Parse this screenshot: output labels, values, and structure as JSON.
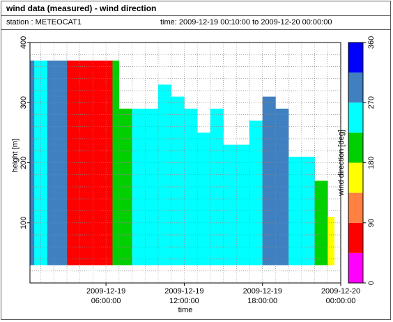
{
  "window": {
    "title": "wind data (measured) - wind direction",
    "station": "station : METEOCAT1",
    "timespan": "time: 2009-12-19 00:10:00 to 2009-12-20 00:00:00"
  },
  "chart_data": {
    "type": "heatmap",
    "title": "wind data (measured) - wind direction",
    "xlabel": "time",
    "ylabel": "height [m]",
    "colorbar_label": "wind direction [deg]",
    "x_range_hours": [
      0,
      24
    ],
    "xlim_hours": [
      0.17,
      24
    ],
    "ylim": [
      0,
      400
    ],
    "grid": true,
    "x_ticks": [
      {
        "hour": 6,
        "line1": "2009-12-19",
        "line2": "06:00:00"
      },
      {
        "hour": 12,
        "line1": "2009-12-19",
        "line2": "12:00:00"
      },
      {
        "hour": 18,
        "line1": "2009-12-19",
        "line2": "18:00:00"
      },
      {
        "hour": 24,
        "line1": "2009-12-20",
        "line2": "00:00:00"
      }
    ],
    "y_ticks": [
      100,
      200,
      300,
      400
    ],
    "color_scale": {
      "min": 0,
      "max": 360,
      "ticks": [
        0,
        90,
        180,
        270,
        360
      ],
      "bins": [
        {
          "from": 0,
          "to": 45,
          "color": "#ff00ff"
        },
        {
          "from": 45,
          "to": 90,
          "color": "#ff0000"
        },
        {
          "from": 90,
          "to": 135,
          "color": "#ff8040"
        },
        {
          "from": 135,
          "to": 180,
          "color": "#ffff00"
        },
        {
          "from": 180,
          "to": 225,
          "color": "#00d000"
        },
        {
          "from": 225,
          "to": 270,
          "color": "#00ffff"
        },
        {
          "from": 270,
          "to": 315,
          "color": "#4080c0"
        },
        {
          "from": 315,
          "to": 360,
          "color": "#0000ff"
        }
      ]
    },
    "heights_m": [
      40,
      60,
      80,
      100,
      120,
      140,
      160,
      180,
      200,
      220,
      240,
      260,
      280,
      300,
      320,
      340,
      360
    ],
    "segments": [
      {
        "t0": 0.17,
        "t1": 0.5,
        "top": 360,
        "dir": 290
      },
      {
        "t0": 0.5,
        "t1": 1.5,
        "top": 360,
        "dir": 250
      },
      {
        "t0": 1.5,
        "t1": 2.0,
        "top": 360,
        "dir": 285
      },
      {
        "t0": 2.0,
        "t1": 3.0,
        "top": 360,
        "dir": 285
      },
      {
        "t0": 3.0,
        "t1": 3.5,
        "top": 360,
        "dir": 75
      },
      {
        "t0": 3.5,
        "t1": 4.5,
        "top": 360,
        "dir": 70
      },
      {
        "t0": 4.5,
        "t1": 5.5,
        "top": 360,
        "dir": 65
      },
      {
        "t0": 5.5,
        "t1": 6.5,
        "top": 360,
        "dir": 75
      },
      {
        "t0": 6.5,
        "t1": 7.0,
        "top": 360,
        "dir": 200
      },
      {
        "t0": 7.0,
        "t1": 8.0,
        "top": 280,
        "dir": 195
      },
      {
        "t0": 8.0,
        "t1": 9.0,
        "top": 280,
        "dir": 250
      },
      {
        "t0": 9.0,
        "t1": 10.0,
        "top": 280,
        "dir": 250
      },
      {
        "t0": 10.0,
        "t1": 11.0,
        "top": 320,
        "dir": 255
      },
      {
        "t0": 11.0,
        "t1": 12.0,
        "top": 300,
        "dir": 260
      },
      {
        "t0": 12.0,
        "t1": 13.0,
        "top": 280,
        "dir": 250
      },
      {
        "t0": 13.0,
        "t1": 14.0,
        "top": 240,
        "dir": 255
      },
      {
        "t0": 14.0,
        "t1": 15.0,
        "top": 280,
        "dir": 250
      },
      {
        "t0": 15.0,
        "t1": 16.0,
        "top": 220,
        "dir": 250
      },
      {
        "t0": 16.0,
        "t1": 17.0,
        "top": 220,
        "dir": 240
      },
      {
        "t0": 17.0,
        "t1": 18.0,
        "top": 260,
        "dir": 250
      },
      {
        "t0": 18.0,
        "t1": 19.0,
        "top": 300,
        "dir": 310
      },
      {
        "t0": 19.0,
        "t1": 20.0,
        "top": 280,
        "dir": 300
      },
      {
        "t0": 20.0,
        "t1": 21.0,
        "top": 200,
        "dir": 250
      },
      {
        "t0": 21.0,
        "t1": 22.0,
        "top": 200,
        "dir": 245
      },
      {
        "t0": 22.0,
        "t1": 23.0,
        "top": 160,
        "dir": 200
      },
      {
        "t0": 23.0,
        "t1": 23.5,
        "top": 100,
        "dir": 170
      }
    ]
  }
}
